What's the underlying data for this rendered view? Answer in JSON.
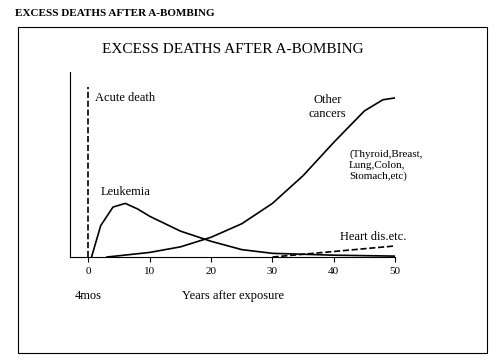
{
  "header": "EXCESS DEATHS AFTER A-BOMBING",
  "chart_data": {
    "type": "line",
    "title": "EXCESS DEATHS AFTER A-BOMBING",
    "x_label": "Years after exposure",
    "xlim": [
      -3,
      50
    ],
    "xticks": [
      0,
      10,
      20,
      30,
      40,
      50
    ],
    "ylim": [
      0,
      100
    ],
    "tick_labels": "x",
    "annotations": [
      "4mos",
      "(Thyroid,Breast,\nLung,Colon,\nStomach,etc)"
    ],
    "series": [
      {
        "name": "Acute death",
        "color": "#000000",
        "line_style": "dashed",
        "x": [
          0,
          0
        ],
        "values": [
          0,
          92
        ]
      },
      {
        "name": "Leukemia",
        "color": "#000000",
        "line_style": "solid",
        "x": [
          0.5,
          2,
          4,
          6,
          8,
          10,
          15,
          20,
          25,
          30,
          40,
          50
        ],
        "values": [
          0,
          17,
          27,
          29,
          26,
          22,
          14,
          8.5,
          4,
          2,
          1,
          0.5
        ]
      },
      {
        "name": "Other\ncancers",
        "color": "#000000",
        "line_style": "solid",
        "x": [
          3,
          10,
          15,
          20,
          25,
          30,
          35,
          40,
          45,
          48,
          50
        ],
        "values": [
          0,
          2.5,
          5.5,
          10.7,
          18,
          29,
          44,
          62,
          79,
          85,
          86
        ]
      },
      {
        "name": "Heart dis.etc.",
        "color": "#000000",
        "line_style": "dashed",
        "x": [
          30,
          40,
          50
        ],
        "values": [
          0,
          3,
          6
        ]
      }
    ]
  }
}
